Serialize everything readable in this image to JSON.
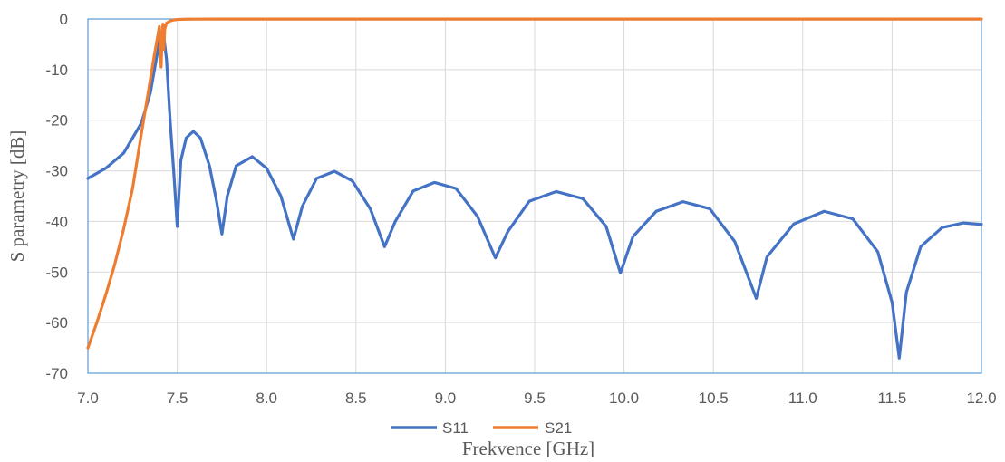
{
  "chart_data": {
    "type": "line",
    "title": "",
    "xlabel": "Frekvence  [GHz]",
    "ylabel": "S parametry [dB]",
    "xlim": [
      7.0,
      12.0
    ],
    "ylim": [
      -70,
      0
    ],
    "x_ticks": [
      7.0,
      7.5,
      8.0,
      8.5,
      9.0,
      9.5,
      10.0,
      10.5,
      11.0,
      11.5,
      12.0
    ],
    "x_tick_labels": [
      "7.0",
      "7.5",
      "8.0",
      "8.5",
      "9.0",
      "9.5",
      "10.0",
      "10.5",
      "11.0",
      "11.5",
      "12.0"
    ],
    "y_ticks": [
      0,
      -10,
      -20,
      -30,
      -40,
      -50,
      -60,
      -70
    ],
    "y_tick_labels": [
      "0",
      "-10",
      "-20",
      "-30",
      "-40",
      "-50",
      "-60",
      "-70"
    ],
    "grid": true,
    "legend_position": "bottom",
    "series": [
      {
        "name": "S11",
        "color": "#4472C4",
        "x": [
          7.0,
          7.1,
          7.2,
          7.3,
          7.35,
          7.4,
          7.42,
          7.44,
          7.46,
          7.48,
          7.5,
          7.52,
          7.55,
          7.59,
          7.63,
          7.68,
          7.72,
          7.75,
          7.78,
          7.83,
          7.92,
          8.0,
          8.08,
          8.15,
          8.2,
          8.28,
          8.38,
          8.48,
          8.58,
          8.66,
          8.72,
          8.82,
          8.94,
          9.06,
          9.18,
          9.28,
          9.35,
          9.47,
          9.62,
          9.77,
          9.9,
          9.98,
          10.05,
          10.18,
          10.33,
          10.48,
          10.62,
          10.74,
          10.8,
          10.95,
          11.12,
          11.28,
          11.42,
          11.5,
          11.54,
          11.58,
          11.66,
          11.78,
          11.9,
          12.0
        ],
        "y": [
          -31.5,
          -29.5,
          -26.5,
          -20.5,
          -14.5,
          -4.5,
          -2.0,
          -8.0,
          -20.0,
          -30.0,
          -41.0,
          -28.0,
          -23.5,
          -22.2,
          -23.5,
          -29.0,
          -36.0,
          -42.5,
          -35.0,
          -29.0,
          -27.2,
          -29.5,
          -35.0,
          -43.5,
          -37.0,
          -31.5,
          -30.1,
          -32.0,
          -37.5,
          -45.0,
          -40.0,
          -34.0,
          -32.3,
          -33.5,
          -39.0,
          -47.2,
          -42.0,
          -36.0,
          -34.1,
          -35.5,
          -41.0,
          -50.2,
          -43.0,
          -38.0,
          -36.1,
          -37.5,
          -44.0,
          -55.2,
          -47.0,
          -40.5,
          -38.0,
          -39.5,
          -46.0,
          -56.0,
          -67.0,
          -54.0,
          -45.0,
          -41.2,
          -40.3,
          -40.6
        ]
      },
      {
        "name": "S21",
        "color": "#ED7D31",
        "x": [
          7.0,
          7.05,
          7.1,
          7.15,
          7.2,
          7.25,
          7.3,
          7.34,
          7.37,
          7.39,
          7.4,
          7.41,
          7.415,
          7.42,
          7.425,
          7.43,
          7.44,
          7.46,
          7.48,
          7.5,
          7.55,
          7.6,
          7.7,
          8.0,
          9.0,
          10.0,
          11.0,
          12.0
        ],
        "y": [
          -65.0,
          -60.0,
          -54.5,
          -48.5,
          -41.5,
          -33.5,
          -22.5,
          -14.0,
          -7.5,
          -3.5,
          -1.5,
          -9.5,
          -4.0,
          -1.0,
          -6.0,
          -2.0,
          -0.8,
          -0.4,
          -0.2,
          -0.1,
          -0.05,
          -0.03,
          -0.02,
          -0.02,
          -0.02,
          -0.02,
          -0.02,
          -0.02
        ]
      }
    ]
  }
}
